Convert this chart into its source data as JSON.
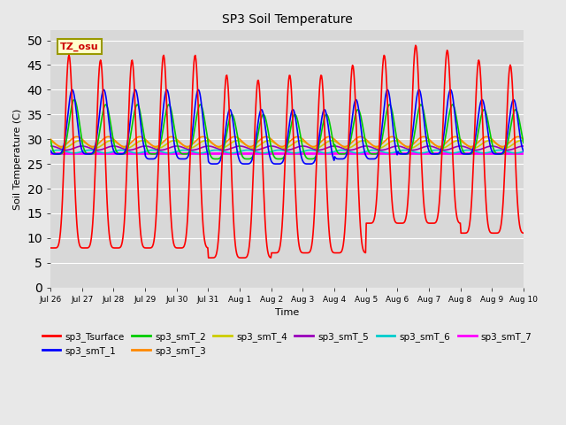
{
  "title": "SP3 Soil Temperature",
  "ylabel": "Soil Temperature (C)",
  "xlabel": "Time",
  "tz_label": "TZ_osu",
  "ylim": [
    0,
    52
  ],
  "yticks": [
    0,
    5,
    10,
    15,
    20,
    25,
    30,
    35,
    40,
    45,
    50
  ],
  "background_color": "#e8e8e8",
  "plot_bg_color": "#d8d8d8",
  "series_colors": {
    "sp3_Tsurface": "#ff0000",
    "sp3_smT_1": "#0000ff",
    "sp3_smT_2": "#00cc00",
    "sp3_smT_3": "#ff8800",
    "sp3_smT_4": "#cccc00",
    "sp3_smT_5": "#9900bb",
    "sp3_smT_6": "#00cccc",
    "sp3_smT_7": "#ff00ff"
  },
  "x_tick_labels": [
    "Jul 26",
    "Jul 27",
    "Jul 28",
    "Jul 29",
    "Jul 30",
    "Jul 31",
    "Aug 1",
    "Aug 2",
    "Aug 3",
    "Aug 4",
    "Aug 5",
    "Aug 6",
    "Aug 7",
    "Aug 8",
    "Aug 9",
    "Aug 10"
  ],
  "figsize": [
    6.4,
    4.8
  ],
  "dpi": 100
}
